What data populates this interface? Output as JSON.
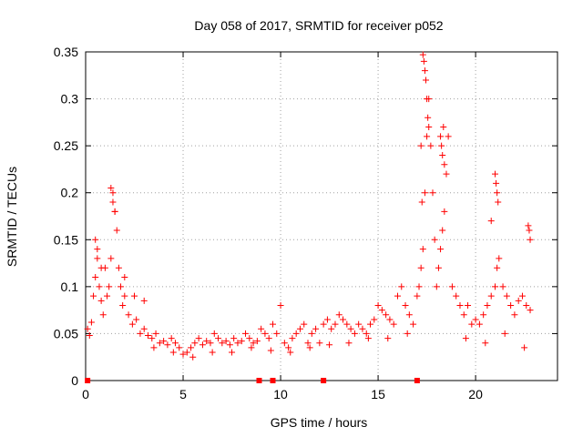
{
  "chart_data": {
    "type": "scatter",
    "title": "Day 058 of 2017, SRMTID for receiver p052",
    "xlabel": "GPS time / hours",
    "ylabel": "SRMTID / TECUs",
    "xlim": [
      0,
      24.2
    ],
    "ylim": [
      0,
      0.35
    ],
    "x_ticks": [
      "0",
      "5",
      "10",
      "15",
      "20"
    ],
    "y_ticks": [
      "0",
      "0.05",
      "0.1",
      "0.15",
      "0.2",
      "0.25",
      "0.3",
      "0.35"
    ],
    "grid": true,
    "series": [
      {
        "name": "SRMTID",
        "marker": "+",
        "color": "#ff0000",
        "x": [
          0.1,
          0.2,
          0.3,
          0.4,
          0.5,
          0.6,
          0.7,
          0.8,
          0.9,
          1.0,
          1.1,
          1.2,
          1.3,
          1.4,
          1.5,
          1.6,
          1.7,
          1.8,
          1.9,
          2.0,
          2.2,
          2.4,
          2.6,
          2.8,
          3.0,
          3.2,
          3.4,
          3.6,
          3.8,
          4.0,
          4.2,
          4.4,
          4.6,
          4.8,
          5.0,
          5.2,
          5.4,
          5.6,
          5.8,
          6.0,
          6.2,
          6.4,
          6.6,
          6.8,
          7.0,
          7.2,
          7.4,
          7.6,
          7.8,
          8.0,
          8.2,
          8.4,
          8.6,
          8.8,
          9.0,
          9.2,
          9.4,
          9.6,
          9.8,
          10.0,
          10.2,
          10.4,
          10.6,
          10.8,
          11.0,
          11.2,
          11.4,
          11.6,
          11.8,
          12.0,
          12.2,
          12.4,
          12.6,
          12.8,
          13.0,
          13.2,
          13.4,
          13.6,
          13.8,
          14.0,
          14.2,
          14.4,
          14.6,
          14.8,
          15.0,
          15.2,
          15.4,
          15.6,
          15.8,
          16.0,
          16.2,
          16.4,
          16.6,
          16.8,
          17.0,
          17.1,
          17.2,
          17.3,
          17.4,
          17.5,
          17.6,
          17.7,
          17.8,
          17.9,
          18.0,
          18.1,
          18.2,
          18.3,
          18.4,
          18.5,
          18.6,
          18.8,
          19.0,
          19.2,
          19.4,
          19.6,
          19.8,
          20.0,
          20.2,
          20.4,
          20.6,
          20.8,
          21.0,
          21.1,
          21.2,
          21.4,
          21.6,
          21.8,
          22.0,
          22.2,
          22.4,
          22.6,
          22.8,
          1.3,
          1.4,
          1.5,
          0.5,
          0.6,
          0.8,
          2.0,
          2.5,
          3.0,
          17.3,
          17.35,
          17.4,
          17.45,
          17.5,
          17.55,
          17.6,
          18.2,
          18.25,
          18.3,
          18.35,
          18.4,
          17.2,
          17.25,
          20.8,
          21.0,
          21.05,
          21.1,
          21.15,
          22.7,
          22.75,
          22.8,
          3.5,
          4.5,
          5.5,
          6.5,
          7.5,
          8.5,
          9.5,
          10.5,
          11.5,
          12.5,
          13.5,
          14.5,
          15.5,
          16.5,
          19.5,
          20.5,
          21.5,
          22.5
        ],
        "y": [
          0.055,
          0.048,
          0.062,
          0.09,
          0.11,
          0.13,
          0.1,
          0.085,
          0.07,
          0.12,
          0.09,
          0.1,
          0.13,
          0.19,
          0.18,
          0.16,
          0.12,
          0.1,
          0.08,
          0.09,
          0.07,
          0.06,
          0.065,
          0.05,
          0.055,
          0.048,
          0.045,
          0.05,
          0.04,
          0.042,
          0.038,
          0.045,
          0.04,
          0.035,
          0.028,
          0.03,
          0.035,
          0.04,
          0.045,
          0.038,
          0.042,
          0.04,
          0.05,
          0.045,
          0.04,
          0.042,
          0.038,
          0.045,
          0.04,
          0.042,
          0.05,
          0.045,
          0.04,
          0.042,
          0.055,
          0.05,
          0.045,
          0.06,
          0.05,
          0.08,
          0.04,
          0.035,
          0.045,
          0.05,
          0.055,
          0.06,
          0.04,
          0.05,
          0.055,
          0.04,
          0.06,
          0.065,
          0.055,
          0.06,
          0.07,
          0.065,
          0.06,
          0.055,
          0.05,
          0.06,
          0.055,
          0.05,
          0.06,
          0.065,
          0.08,
          0.075,
          0.07,
          0.065,
          0.06,
          0.09,
          0.1,
          0.08,
          0.07,
          0.06,
          0.09,
          0.1,
          0.12,
          0.14,
          0.2,
          0.26,
          0.3,
          0.25,
          0.2,
          0.15,
          0.1,
          0.12,
          0.14,
          0.16,
          0.18,
          0.22,
          0.26,
          0.1,
          0.09,
          0.08,
          0.07,
          0.08,
          0.06,
          0.065,
          0.06,
          0.07,
          0.08,
          0.09,
          0.1,
          0.12,
          0.13,
          0.1,
          0.09,
          0.08,
          0.07,
          0.085,
          0.09,
          0.08,
          0.075,
          0.205,
          0.2,
          0.18,
          0.15,
          0.14,
          0.12,
          0.11,
          0.09,
          0.085,
          0.347,
          0.34,
          0.33,
          0.32,
          0.3,
          0.28,
          0.27,
          0.26,
          0.25,
          0.24,
          0.27,
          0.23,
          0.25,
          0.19,
          0.17,
          0.22,
          0.21,
          0.2,
          0.19,
          0.165,
          0.16,
          0.15,
          0.035,
          0.03,
          0.025,
          0.03,
          0.03,
          0.035,
          0.032,
          0.03,
          0.035,
          0.038,
          0.04,
          0.045,
          0.045,
          0.05,
          0.045,
          0.04,
          0.05,
          0.035
        ]
      },
      {
        "name": "zero markers",
        "marker": "square",
        "color": "#ff0000",
        "x": [
          0.1,
          8.9,
          9.6,
          12.2,
          17.0
        ],
        "y": [
          0,
          0,
          0,
          0,
          0
        ]
      }
    ]
  }
}
